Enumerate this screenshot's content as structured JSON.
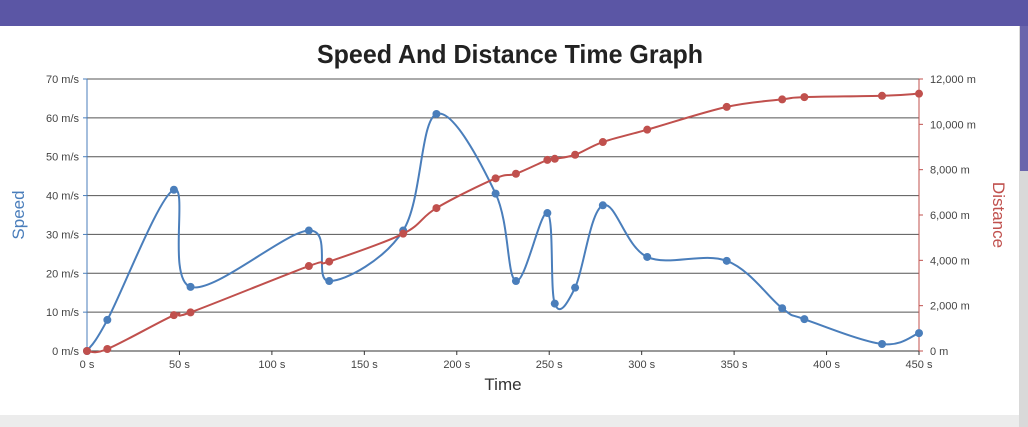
{
  "colors": {
    "header_bar": "#5b56a5",
    "speed": "#4a7ebb",
    "distance": "#c0504d"
  },
  "chart_data": {
    "type": "line",
    "title": "Speed And Distance Time Graph",
    "xlabel": "Time",
    "ylabel": "Speed",
    "y2label": "Distance",
    "xlim": [
      0,
      450
    ],
    "ylim": [
      0,
      70
    ],
    "y2lim": [
      0,
      12000
    ],
    "x_ticks": [
      0,
      50,
      100,
      150,
      200,
      250,
      300,
      350,
      400,
      450
    ],
    "x_tick_labels": [
      "0 s",
      "50 s",
      "100 s",
      "150 s",
      "200 s",
      "250 s",
      "300 s",
      "350 s",
      "400 s",
      "450 s"
    ],
    "y_ticks": [
      0,
      10,
      20,
      30,
      40,
      50,
      60,
      70
    ],
    "y_tick_labels": [
      "0 m/s",
      "10 m/s",
      "20 m/s",
      "30 m/s",
      "40 m/s",
      "50 m/s",
      "60 m/s",
      "70 m/s"
    ],
    "y2_ticks": [
      0,
      2000,
      4000,
      6000,
      8000,
      10000,
      12000
    ],
    "y2_tick_labels": [
      "0 m",
      "2,000 m",
      "4,000 m",
      "6,000 m",
      "8,000 m",
      "10,000 m",
      "12,000 m"
    ],
    "grid": "horizontal",
    "series": [
      {
        "axis": "left",
        "color": "#4a7ebb",
        "points": [
          [
            0,
            0
          ],
          [
            11,
            8
          ],
          [
            47,
            41.5
          ],
          [
            56,
            16.5
          ],
          [
            120,
            31
          ],
          [
            131,
            18
          ],
          [
            171,
            31
          ],
          [
            189,
            61
          ],
          [
            221,
            40.5
          ],
          [
            232,
            18
          ],
          [
            249,
            35.5
          ],
          [
            253,
            12.2
          ],
          [
            264,
            16.3
          ],
          [
            279,
            37.5
          ],
          [
            303,
            24.2
          ],
          [
            346,
            23.2
          ],
          [
            376,
            11
          ],
          [
            388,
            8.2
          ],
          [
            430,
            1.8
          ],
          [
            450,
            4.6
          ]
        ]
      },
      {
        "axis": "right",
        "color": "#c0504d",
        "points": [
          [
            0,
            0
          ],
          [
            11,
            88
          ],
          [
            47,
            1581
          ],
          [
            56,
            1704
          ],
          [
            120,
            3748
          ],
          [
            131,
            3945
          ],
          [
            171,
            5176
          ],
          [
            189,
            6306
          ],
          [
            221,
            7618
          ],
          [
            232,
            7820
          ],
          [
            249,
            8430
          ],
          [
            253,
            8479
          ],
          [
            264,
            8658
          ],
          [
            279,
            9219
          ],
          [
            303,
            9764
          ],
          [
            346,
            10770
          ],
          [
            376,
            11100
          ],
          [
            388,
            11200
          ],
          [
            430,
            11260
          ],
          [
            450,
            11354
          ]
        ]
      }
    ]
  }
}
